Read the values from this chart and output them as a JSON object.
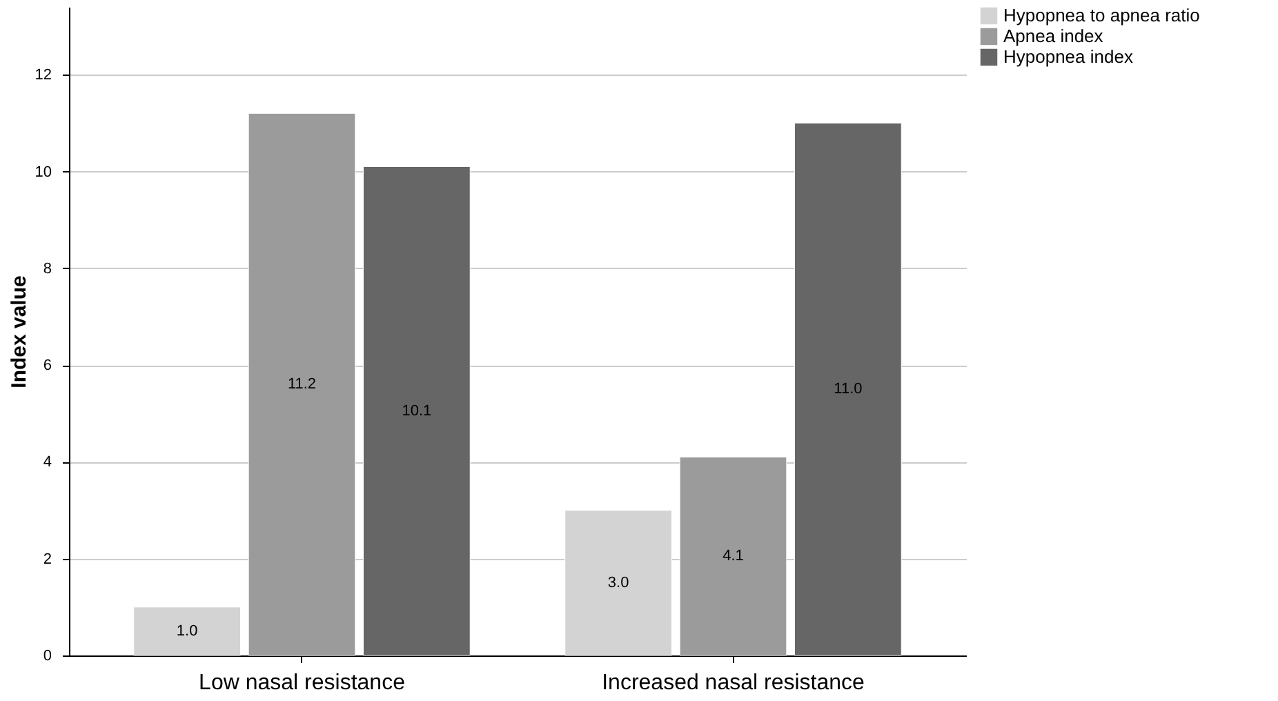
{
  "chart_data": {
    "type": "bar",
    "ylabel": "Index value",
    "categories": [
      "Low nasal resistance",
      "Increased nasal resistance"
    ],
    "series": [
      {
        "name": "Hypopnea to apnea ratio",
        "color": "#d3d3d3",
        "values": [
          1.0,
          3.0
        ],
        "value_labels": [
          "1.0",
          "3.0"
        ]
      },
      {
        "name": "Apnea index",
        "color": "#9b9b9b",
        "values": [
          11.2,
          4.1
        ],
        "value_labels": [
          "11.2",
          "4.1"
        ]
      },
      {
        "name": "Hypopnea index",
        "color": "#666666",
        "values": [
          10.1,
          11.0
        ],
        "value_labels": [
          "10.1",
          "11.0"
        ]
      }
    ],
    "ylim": [
      0,
      13.4
    ],
    "yticks": [
      0,
      2,
      4,
      6,
      8,
      10,
      12
    ],
    "grid": "y",
    "legend": "top right"
  }
}
